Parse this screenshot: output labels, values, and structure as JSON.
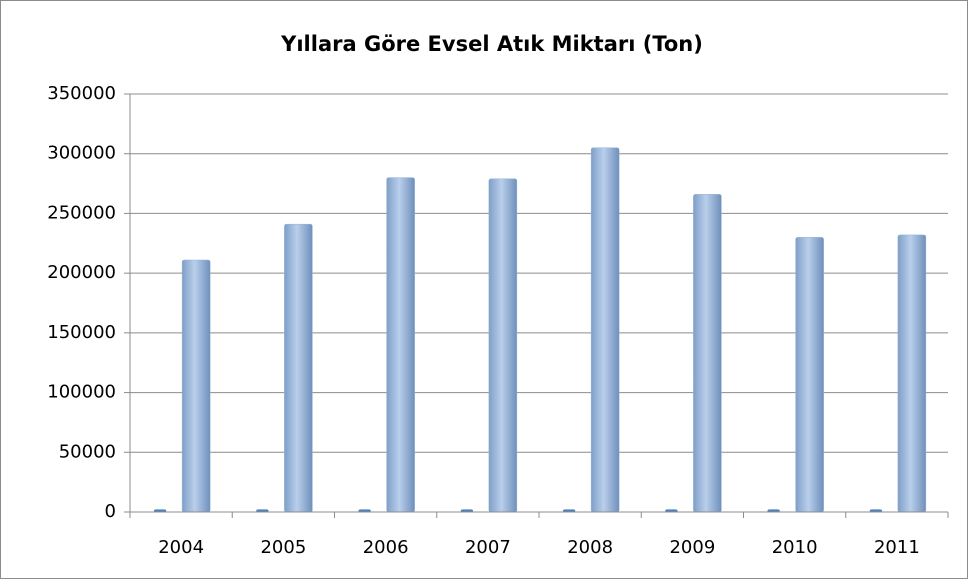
{
  "chart_data": {
    "type": "bar",
    "title": "Yıllara Göre Evsel Atık Miktarı (Ton)",
    "categories": [
      "2004",
      "2005",
      "2006",
      "2007",
      "2008",
      "2009",
      "2010",
      "2011"
    ],
    "series": [
      {
        "color": "#4f81bd",
        "values": [
          2004,
          2005,
          2006,
          2007,
          2008,
          2009,
          2010,
          2011
        ]
      },
      {
        "color": "#95b3d7",
        "values": [
          211000,
          241000,
          280000,
          279000,
          305000,
          266000,
          230000,
          232000
        ]
      }
    ],
    "ylim": [
      0,
      350000
    ],
    "yticks": [
      0,
      50000,
      100000,
      150000,
      200000,
      250000,
      300000,
      350000
    ],
    "grid": true
  }
}
